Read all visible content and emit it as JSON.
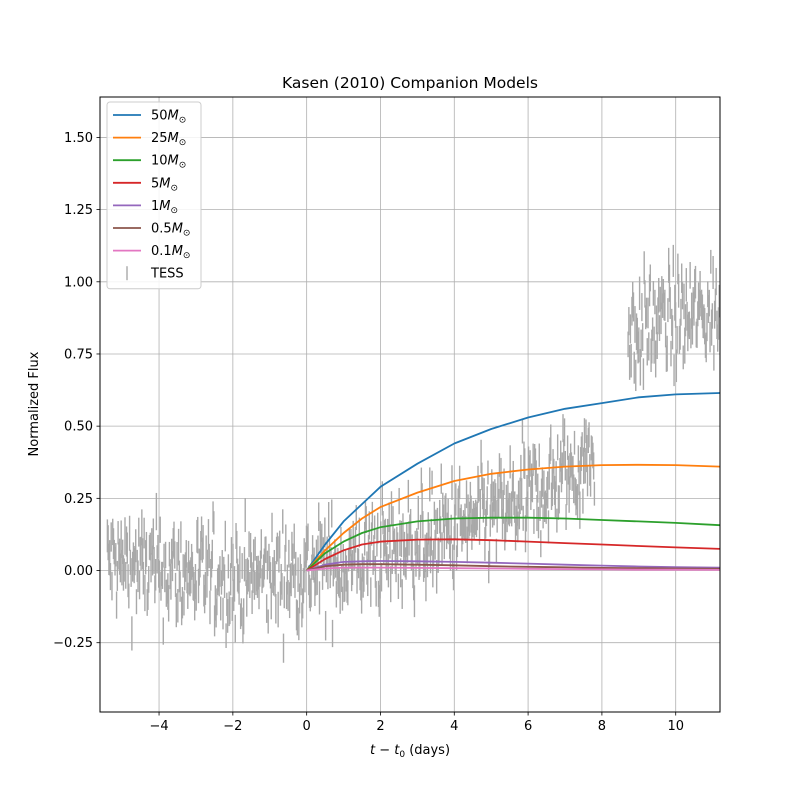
{
  "chart_data": {
    "type": "line",
    "title": "Kasen (2010) Companion Models",
    "xlabel_main": "t − t",
    "xlabel_sub": "0",
    "xlabel_unit": " (days)",
    "ylabel": "Normalized Flux",
    "xlim": [
      -5.6,
      11.2
    ],
    "ylim": [
      -0.49,
      1.64
    ],
    "xticks": [
      -4,
      -2,
      0,
      2,
      4,
      6,
      8,
      10
    ],
    "xtick_labels": [
      "−4",
      "−2",
      "0",
      "2",
      "4",
      "6",
      "8",
      "10"
    ],
    "yticks": [
      -0.25,
      0.0,
      0.25,
      0.5,
      0.75,
      1.0,
      1.25,
      1.5
    ],
    "ytick_labels": [
      "−0.25",
      "0.00",
      "0.25",
      "0.50",
      "0.75",
      "1.00",
      "1.25",
      "1.50"
    ],
    "grid": true,
    "legend_position": "top-left",
    "legend_mass_suffix": "M",
    "legend_sun_symbol": "⊙",
    "series": [
      {
        "name": "50",
        "color": "#1f77b4",
        "x": [
          0,
          0.5,
          1,
          1.5,
          2,
          3,
          4,
          5,
          6,
          7,
          8,
          9,
          10,
          11.2
        ],
        "y": [
          0.0,
          0.09,
          0.17,
          0.23,
          0.29,
          0.37,
          0.44,
          0.49,
          0.53,
          0.56,
          0.58,
          0.6,
          0.61,
          0.615
        ]
      },
      {
        "name": "25",
        "color": "#ff7f0e",
        "x": [
          0,
          0.5,
          1,
          1.5,
          2,
          3,
          4,
          5,
          6,
          7,
          8,
          9,
          10,
          11.2
        ],
        "y": [
          0.0,
          0.07,
          0.13,
          0.18,
          0.22,
          0.27,
          0.31,
          0.335,
          0.35,
          0.36,
          0.365,
          0.366,
          0.365,
          0.36
        ]
      },
      {
        "name": "10",
        "color": "#2ca02c",
        "x": [
          0,
          0.5,
          1,
          1.5,
          2,
          3,
          4,
          5,
          6,
          7,
          8,
          9,
          10,
          11.2
        ],
        "y": [
          0.0,
          0.06,
          0.1,
          0.13,
          0.15,
          0.17,
          0.18,
          0.183,
          0.183,
          0.18,
          0.175,
          0.17,
          0.165,
          0.157
        ]
      },
      {
        "name": "5",
        "color": "#d62728",
        "x": [
          0,
          0.5,
          1,
          1.5,
          2,
          3,
          4,
          5,
          6,
          7,
          8,
          9,
          10,
          11.2
        ],
        "y": [
          0.0,
          0.04,
          0.07,
          0.09,
          0.1,
          0.107,
          0.108,
          0.105,
          0.1,
          0.095,
          0.09,
          0.085,
          0.08,
          0.075
        ]
      },
      {
        "name": "1",
        "color": "#9467bd",
        "x": [
          0,
          0.5,
          1,
          1.5,
          2,
          3,
          4,
          5,
          6,
          7,
          8,
          9,
          10,
          11.2
        ],
        "y": [
          0.0,
          0.02,
          0.03,
          0.032,
          0.033,
          0.032,
          0.03,
          0.027,
          0.024,
          0.02,
          0.017,
          0.014,
          0.012,
          0.01
        ]
      },
      {
        "name": "0.5",
        "color": "#8c564b",
        "x": [
          0,
          0.5,
          1,
          1.5,
          2,
          3,
          4,
          5,
          6,
          7,
          8,
          9,
          10,
          11.2
        ],
        "y": [
          0.0,
          0.015,
          0.02,
          0.022,
          0.022,
          0.02,
          0.018,
          0.015,
          0.013,
          0.011,
          0.009,
          0.008,
          0.007,
          0.006
        ]
      },
      {
        "name": "0.1",
        "color": "#e377c2",
        "x": [
          0,
          0.5,
          1,
          1.5,
          2,
          3,
          4,
          5,
          6,
          7,
          8,
          9,
          10,
          11.2
        ],
        "y": [
          0.0,
          0.007,
          0.01,
          0.01,
          0.01,
          0.009,
          0.008,
          0.007,
          0.006,
          0.005,
          0.004,
          0.003,
          0.003,
          0.002
        ]
      }
    ],
    "data_series": {
      "name": "TESS",
      "color": "#a9a9a9",
      "x_start": -5.4,
      "x_end": 11.2,
      "trend_x": [
        -5.4,
        -4,
        -2,
        -1,
        0,
        1,
        2,
        3,
        4,
        5,
        6,
        7,
        7.8,
        8.7,
        9.5,
        10.5,
        11.2
      ],
      "trend_y": [
        0.03,
        0.0,
        -0.03,
        -0.02,
        0.0,
        0.02,
        0.06,
        0.1,
        0.14,
        0.19,
        0.25,
        0.33,
        0.4,
        0.82,
        0.86,
        0.88,
        0.9
      ],
      "gap": [
        7.8,
        8.7
      ],
      "count": 800,
      "errorbar_half": 0.05
    }
  }
}
